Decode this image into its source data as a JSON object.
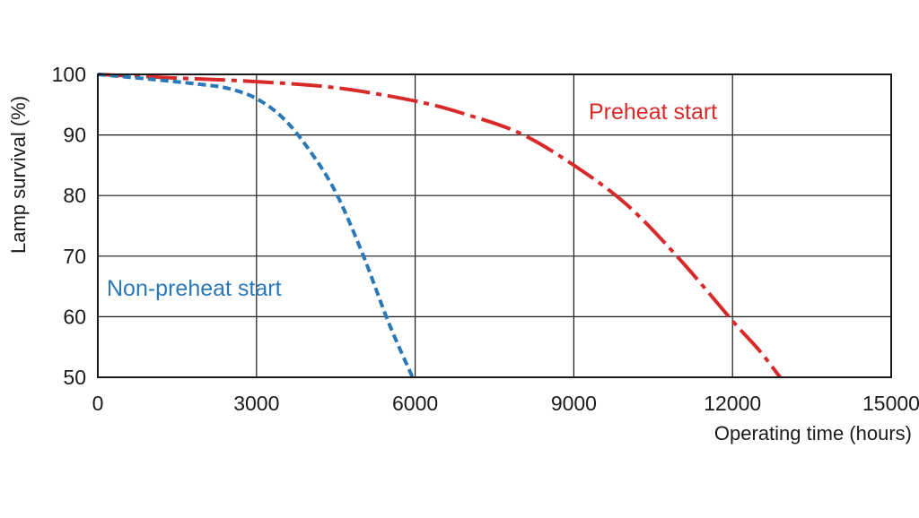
{
  "chart_data": {
    "type": "line",
    "xlabel": "Operating time (hours)",
    "ylabel": "Lamp survival  (%)",
    "xlim": [
      0,
      15000
    ],
    "ylim": [
      50,
      100
    ],
    "x_ticks": [
      0,
      3000,
      6000,
      9000,
      12000,
      15000
    ],
    "y_ticks": [
      50,
      60,
      70,
      80,
      90,
      100
    ],
    "grid": true,
    "legend": "none",
    "series": [
      {
        "name": "Preheat start",
        "color": "#d82a2a",
        "line_style": "dash-dot",
        "x": [
          0,
          1500,
          3000,
          4500,
          6000,
          7000,
          8000,
          9000,
          10000,
          11000,
          12000,
          12500,
          12900
        ],
        "y": [
          100,
          99.4,
          98.8,
          97.8,
          95.6,
          93.3,
          90.2,
          85.0,
          78.5,
          69.5,
          59.3,
          54.5,
          50
        ]
      },
      {
        "name": "Non-preheat start",
        "color": "#2b78b8",
        "line_style": "dashed",
        "x": [
          0,
          1000,
          2000,
          2500,
          3000,
          3500,
          4000,
          4500,
          5000,
          5500,
          5950
        ],
        "y": [
          100,
          99.2,
          98.3,
          97.6,
          96.0,
          92.8,
          87.5,
          80.5,
          70.5,
          59.0,
          50
        ]
      }
    ]
  }
}
